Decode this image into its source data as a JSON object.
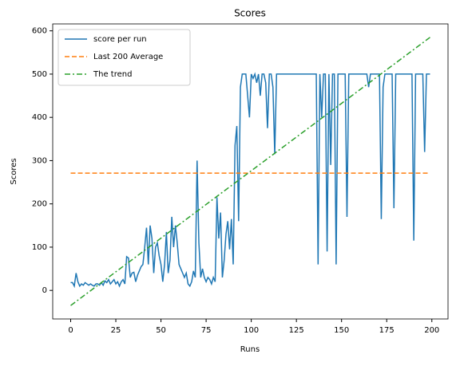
{
  "chart_data": {
    "type": "line",
    "title": "Scores",
    "xlabel": "Runs",
    "ylabel": "Scores",
    "xlim": [
      -9.95,
      208.95
    ],
    "ylim": [
      -66,
      616
    ],
    "xticks": [
      0,
      25,
      50,
      75,
      100,
      125,
      150,
      175,
      200
    ],
    "yticks": [
      0,
      100,
      200,
      300,
      400,
      500,
      600
    ],
    "legend": "upper left",
    "series": [
      {
        "name": "score per run",
        "color": "#1f77b4",
        "linestyle": "solid",
        "x": [
          0,
          1,
          2,
          3,
          4,
          5,
          6,
          7,
          8,
          9,
          10,
          11,
          12,
          13,
          14,
          15,
          16,
          17,
          18,
          19,
          20,
          21,
          22,
          23,
          24,
          25,
          26,
          27,
          28,
          29,
          30,
          31,
          32,
          33,
          34,
          35,
          36,
          37,
          38,
          39,
          40,
          41,
          42,
          43,
          44,
          45,
          46,
          47,
          48,
          49,
          50,
          51,
          52,
          53,
          54,
          55,
          56,
          57,
          58,
          59,
          60,
          61,
          62,
          63,
          64,
          65,
          66,
          67,
          68,
          69,
          70,
          71,
          72,
          73,
          74,
          75,
          76,
          77,
          78,
          79,
          80,
          81,
          82,
          83,
          84,
          85,
          86,
          87,
          88,
          89,
          90,
          91,
          92,
          93,
          94,
          95,
          96,
          97,
          98,
          99,
          100,
          101,
          102,
          103,
          104,
          105,
          106,
          107,
          108,
          109,
          110,
          111,
          112,
          113,
          114,
          115,
          116,
          117,
          118,
          119,
          120,
          121,
          122,
          123,
          124,
          125,
          126,
          127,
          128,
          129,
          130,
          131,
          132,
          133,
          134,
          135,
          136,
          137,
          138,
          139,
          140,
          141,
          142,
          143,
          144,
          145,
          146,
          147,
          148,
          149,
          150,
          151,
          152,
          153,
          154,
          155,
          156,
          157,
          158,
          159,
          160,
          161,
          162,
          163,
          164,
          165,
          166,
          167,
          168,
          169,
          170,
          171,
          172,
          173,
          174,
          175,
          176,
          177,
          178,
          179,
          180,
          181,
          182,
          183,
          184,
          185,
          186,
          187,
          188,
          189,
          190,
          191,
          192,
          193,
          194,
          195,
          196,
          197,
          198,
          199
        ],
        "values": [
          18,
          18,
          10,
          40,
          20,
          10,
          15,
          12,
          18,
          15,
          12,
          15,
          12,
          10,
          15,
          15,
          12,
          18,
          12,
          22,
          18,
          25,
          15,
          20,
          25,
          15,
          20,
          10,
          20,
          25,
          15,
          78,
          75,
          30,
          40,
          42,
          20,
          35,
          45,
          55,
          60,
          100,
          145,
          60,
          150,
          120,
          40,
          100,
          110,
          80,
          60,
          20,
          60,
          135,
          40,
          70,
          170,
          100,
          150,
          110,
          60,
          50,
          40,
          30,
          40,
          15,
          10,
          20,
          45,
          30,
          300,
          110,
          30,
          50,
          30,
          20,
          30,
          25,
          15,
          30,
          20,
          215,
          120,
          180,
          30,
          70,
          130,
          160,
          95,
          165,
          60,
          335,
          380,
          160,
          470,
          500,
          500,
          500,
          450,
          400,
          500,
          490,
          500,
          480,
          500,
          450,
          500,
          500,
          480,
          375,
          500,
          500,
          470,
          315,
          500,
          500,
          500,
          500,
          500,
          500,
          500,
          500,
          500,
          500,
          500,
          500,
          500,
          500,
          500,
          500,
          500,
          500,
          500,
          500,
          500,
          500,
          500,
          60,
          500,
          400,
          500,
          500,
          90,
          500,
          290,
          500,
          500,
          60,
          500,
          500,
          500,
          500,
          500,
          170,
          500,
          500,
          500,
          500,
          500,
          500,
          500,
          500,
          500,
          500,
          500,
          470,
          500,
          500,
          500,
          500,
          500,
          500,
          165,
          470,
          500,
          500,
          500,
          500,
          500,
          190,
          500,
          500,
          500,
          500,
          500,
          500,
          500,
          500,
          500,
          500,
          115,
          500,
          500,
          500,
          500,
          500,
          320,
          500,
          500,
          500
        ]
      },
      {
        "name": "Last 200 Average",
        "color": "#ff7f0e",
        "linestyle": "dashed",
        "x": [
          0,
          199
        ],
        "values": [
          271,
          271
        ]
      },
      {
        "name": "The trend",
        "color": "#2ca02c",
        "linestyle": "dashdot",
        "x": [
          0,
          199
        ],
        "values": [
          -35,
          585
        ]
      }
    ]
  }
}
